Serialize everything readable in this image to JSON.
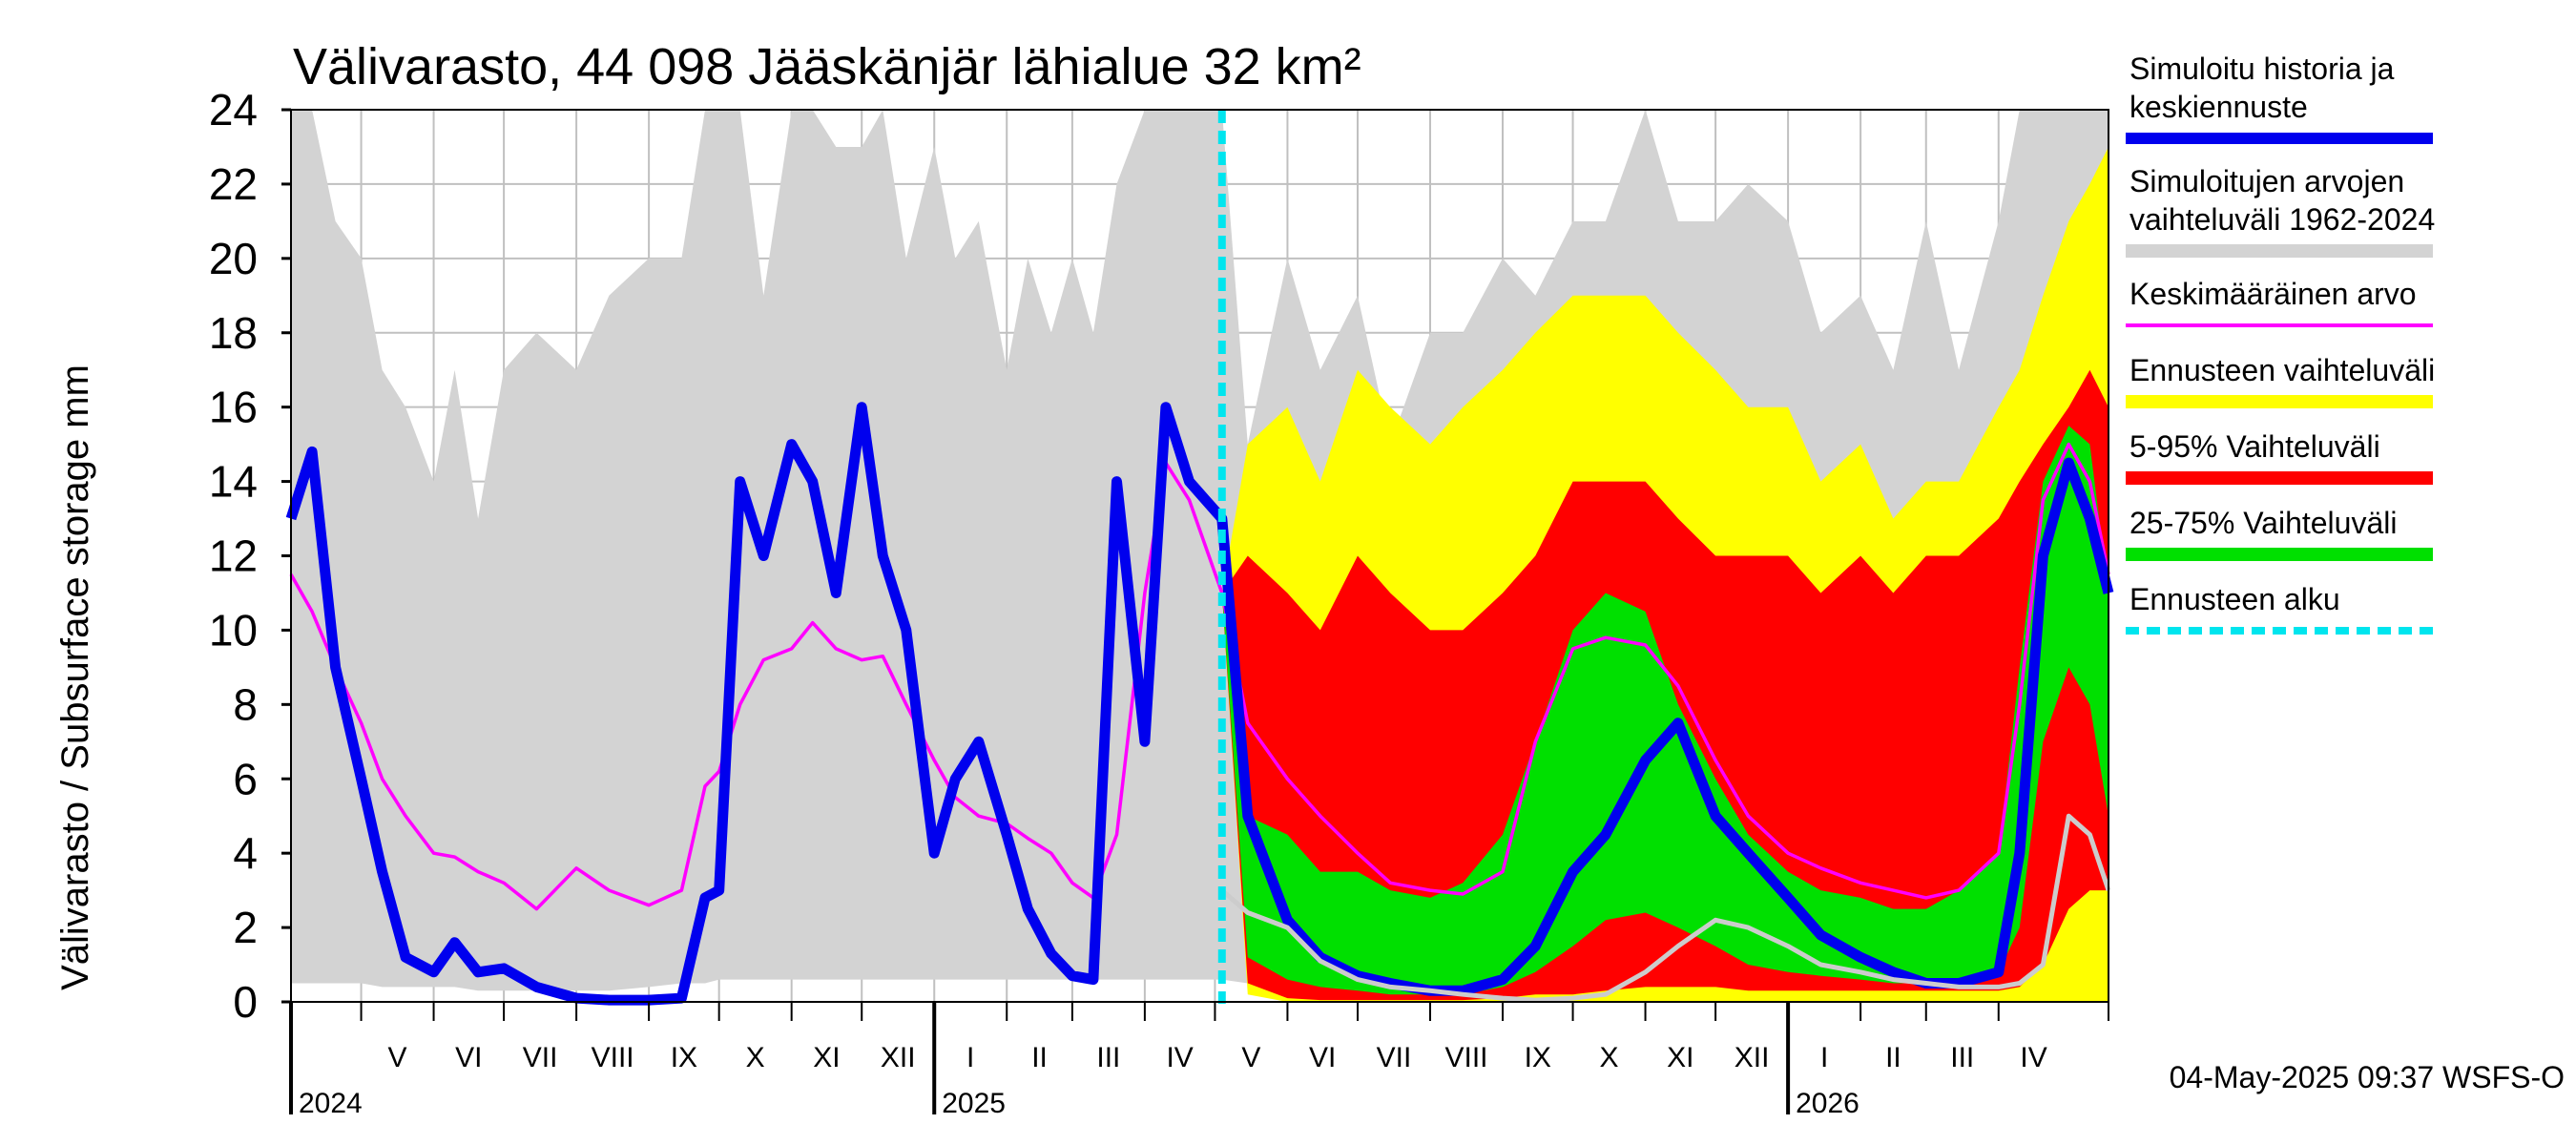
{
  "chart_data": {
    "type": "area",
    "title": "Välivarasto, 44 098 Jääskänjär lähialue 32 km²",
    "ylabel": "Välivarasto / Subsurface storage  mm",
    "ylim": [
      0,
      24
    ],
    "yticks": [
      "0",
      "2",
      "4",
      "6",
      "8",
      "10",
      "12",
      "14",
      "16",
      "18",
      "20",
      "22",
      "24"
    ],
    "x_start": "2024-04-01",
    "x_end": "2026-05-18",
    "forecast_start": "2025-05-04",
    "months": [
      {
        "label": "V",
        "start": "2024-05-01",
        "end": "2024-06-01"
      },
      {
        "label": "VI",
        "start": "2024-06-01",
        "end": "2024-07-01"
      },
      {
        "label": "VII",
        "start": "2024-07-01",
        "end": "2024-08-01"
      },
      {
        "label": "VIII",
        "start": "2024-08-01",
        "end": "2024-09-01"
      },
      {
        "label": "IX",
        "start": "2024-09-01",
        "end": "2024-10-01"
      },
      {
        "label": "X",
        "start": "2024-10-01",
        "end": "2024-11-01"
      },
      {
        "label": "XI",
        "start": "2024-11-01",
        "end": "2024-12-01"
      },
      {
        "label": "XII",
        "start": "2024-12-01",
        "end": "2025-01-01"
      },
      {
        "label": "I",
        "start": "2025-01-01",
        "end": "2025-02-01"
      },
      {
        "label": "II",
        "start": "2025-02-01",
        "end": "2025-03-01"
      },
      {
        "label": "III",
        "start": "2025-03-01",
        "end": "2025-04-01"
      },
      {
        "label": "IV",
        "start": "2025-04-01",
        "end": "2025-05-01"
      },
      {
        "label": "V",
        "start": "2025-05-01",
        "end": "2025-06-01"
      },
      {
        "label": "VI",
        "start": "2025-06-01",
        "end": "2025-07-01"
      },
      {
        "label": "VII",
        "start": "2025-07-01",
        "end": "2025-08-01"
      },
      {
        "label": "VIII",
        "start": "2025-08-01",
        "end": "2025-09-01"
      },
      {
        "label": "IX",
        "start": "2025-09-01",
        "end": "2025-10-01"
      },
      {
        "label": "X",
        "start": "2025-10-01",
        "end": "2025-11-01"
      },
      {
        "label": "XI",
        "start": "2025-11-01",
        "end": "2025-12-01"
      },
      {
        "label": "XII",
        "start": "2025-12-01",
        "end": "2026-01-01"
      },
      {
        "label": "I",
        "start": "2026-01-01",
        "end": "2026-02-01"
      },
      {
        "label": "II",
        "start": "2026-02-01",
        "end": "2026-03-01"
      },
      {
        "label": "III",
        "start": "2026-03-01",
        "end": "2026-04-01"
      },
      {
        "label": "IV",
        "start": "2026-04-01",
        "end": "2026-05-01"
      }
    ],
    "years": [
      {
        "label": "2024",
        "date": "2024-04-01"
      },
      {
        "label": "2025",
        "date": "2025-01-01"
      },
      {
        "label": "2026",
        "date": "2026-01-01"
      }
    ],
    "x": [
      "2024-04-01",
      "2024-04-10",
      "2024-04-20",
      "2024-05-01",
      "2024-05-10",
      "2024-05-20",
      "2024-06-01",
      "2024-06-10",
      "2024-06-20",
      "2024-07-01",
      "2024-07-15",
      "2024-08-01",
      "2024-08-15",
      "2024-09-01",
      "2024-09-15",
      "2024-09-25",
      "2024-10-01",
      "2024-10-10",
      "2024-10-20",
      "2024-11-01",
      "2024-11-10",
      "2024-11-20",
      "2024-12-01",
      "2024-12-10",
      "2024-12-20",
      "2025-01-01",
      "2025-01-10",
      "2025-01-20",
      "2025-02-01",
      "2025-02-10",
      "2025-02-20",
      "2025-03-01",
      "2025-03-10",
      "2025-03-20",
      "2025-04-01",
      "2025-04-10",
      "2025-04-20",
      "2025-05-04",
      "2025-05-15",
      "2025-06-01",
      "2025-06-15",
      "2025-07-01",
      "2025-07-15",
      "2025-08-01",
      "2025-08-15",
      "2025-09-01",
      "2025-09-15",
      "2025-10-01",
      "2025-10-15",
      "2025-11-01",
      "2025-11-15",
      "2025-12-01",
      "2025-12-15",
      "2026-01-01",
      "2026-01-15",
      "2026-02-01",
      "2026-02-15",
      "2026-03-01",
      "2026-03-15",
      "2026-04-01",
      "2026-04-10",
      "2026-04-20",
      "2026-05-01",
      "2026-05-10",
      "2026-05-18"
    ],
    "series": [
      {
        "name": "Simuloitujen arvojen vaihteluväli 1962-2024",
        "role": "band",
        "color": "#d3d3d3",
        "low": [
          0.5,
          0.5,
          0.5,
          0.5,
          0.4,
          0.4,
          0.4,
          0.4,
          0.3,
          0.3,
          0.3,
          0.3,
          0.3,
          0.4,
          0.5,
          0.5,
          0.6,
          0.6,
          0.6,
          0.6,
          0.6,
          0.6,
          0.6,
          0.6,
          0.6,
          0.6,
          0.6,
          0.6,
          0.6,
          0.6,
          0.6,
          0.6,
          0.6,
          0.6,
          0.6,
          0.6,
          0.6,
          0.6,
          0.5,
          0.4,
          0.3,
          0.3,
          0.3,
          0.3,
          0.3,
          0.4,
          0.5,
          0.6,
          0.6,
          0.6,
          0.6,
          0.6,
          0.6,
          0.6,
          0.6,
          0.6,
          0.6,
          0.6,
          0.6,
          0.6,
          0.6,
          0.6,
          0.6,
          0.6,
          0.6
        ],
        "high": [
          24,
          24,
          21,
          20,
          17,
          16,
          14,
          17,
          13,
          17,
          18,
          17,
          19,
          20,
          20,
          24,
          24,
          24,
          19,
          24,
          24,
          23,
          23,
          24,
          20,
          23,
          20,
          21,
          17,
          20,
          18,
          20,
          18,
          22,
          24,
          24,
          24,
          24,
          15,
          20,
          17,
          19,
          15,
          18,
          18,
          20,
          19,
          21,
          21,
          24,
          21,
          21,
          22,
          21,
          18,
          19,
          17,
          21,
          17,
          21,
          24,
          24,
          24,
          24,
          24
        ]
      },
      {
        "name": "Ennusteen vaihteluväli",
        "role": "band",
        "color": "#ffff00",
        "low": [
          null,
          null,
          null,
          null,
          null,
          null,
          null,
          null,
          null,
          null,
          null,
          null,
          null,
          null,
          null,
          null,
          null,
          null,
          null,
          null,
          null,
          null,
          null,
          null,
          null,
          null,
          null,
          null,
          null,
          null,
          null,
          null,
          null,
          null,
          null,
          null,
          null,
          11.0,
          0.2,
          0.0,
          0.0,
          0.0,
          0.0,
          0.0,
          0.0,
          0.0,
          0.0,
          0.0,
          0.0,
          0.0,
          0.0,
          0.0,
          0.0,
          0.0,
          0.0,
          0.0,
          0.0,
          0.0,
          0.0,
          0.0,
          0.0,
          0.0,
          0.0,
          0.0,
          0.0
        ],
        "high": [
          null,
          null,
          null,
          null,
          null,
          null,
          null,
          null,
          null,
          null,
          null,
          null,
          null,
          null,
          null,
          null,
          null,
          null,
          null,
          null,
          null,
          null,
          null,
          null,
          null,
          null,
          null,
          null,
          null,
          null,
          null,
          null,
          null,
          null,
          null,
          null,
          null,
          11.0,
          15,
          16,
          14,
          17,
          16,
          15,
          16,
          17,
          18,
          19,
          19,
          19,
          18,
          17,
          16,
          16,
          14,
          15,
          13,
          14,
          14,
          16,
          17,
          19,
          21,
          22,
          23
        ]
      },
      {
        "name": "5-95% Vaihteluväli",
        "role": "band",
        "color": "#ff0000",
        "low": [
          null,
          null,
          null,
          null,
          null,
          null,
          null,
          null,
          null,
          null,
          null,
          null,
          null,
          null,
          null,
          null,
          null,
          null,
          null,
          null,
          null,
          null,
          null,
          null,
          null,
          null,
          null,
          null,
          null,
          null,
          null,
          null,
          null,
          null,
          null,
          null,
          null,
          11.0,
          0.5,
          0.1,
          0.05,
          0.05,
          0.05,
          0.05,
          0.05,
          0.1,
          0.2,
          0.2,
          0.3,
          0.4,
          0.4,
          0.4,
          0.3,
          0.3,
          0.3,
          0.3,
          0.3,
          0.3,
          0.3,
          0.3,
          0.4,
          1.0,
          2.5,
          3.0,
          3.0
        ],
        "high": [
          null,
          null,
          null,
          null,
          null,
          null,
          null,
          null,
          null,
          null,
          null,
          null,
          null,
          null,
          null,
          null,
          null,
          null,
          null,
          null,
          null,
          null,
          null,
          null,
          null,
          null,
          null,
          null,
          null,
          null,
          null,
          null,
          null,
          null,
          null,
          null,
          null,
          11.0,
          12,
          11,
          10,
          12,
          11,
          10,
          10,
          11,
          12,
          14,
          14,
          14,
          13,
          12,
          12,
          12,
          11,
          12,
          11,
          12,
          12,
          13,
          14,
          15,
          16,
          17,
          16
        ]
      },
      {
        "name": "25-75% Vaihteluväli",
        "role": "band",
        "color": "#00e000",
        "low": [
          null,
          null,
          null,
          null,
          null,
          null,
          null,
          null,
          null,
          null,
          null,
          null,
          null,
          null,
          null,
          null,
          null,
          null,
          null,
          null,
          null,
          null,
          null,
          null,
          null,
          null,
          null,
          null,
          null,
          null,
          null,
          null,
          null,
          null,
          null,
          null,
          null,
          11.0,
          1.2,
          0.6,
          0.4,
          0.3,
          0.2,
          0.2,
          0.2,
          0.4,
          0.8,
          1.5,
          2.2,
          2.4,
          2.0,
          1.5,
          1.0,
          0.8,
          0.7,
          0.6,
          0.5,
          0.5,
          0.5,
          0.8,
          2.0,
          7.0,
          9.0,
          8.0,
          5.0
        ],
        "high": [
          null,
          null,
          null,
          null,
          null,
          null,
          null,
          null,
          null,
          null,
          null,
          null,
          null,
          null,
          null,
          null,
          null,
          null,
          null,
          null,
          null,
          null,
          null,
          null,
          null,
          null,
          null,
          null,
          null,
          null,
          null,
          null,
          null,
          null,
          null,
          null,
          null,
          11.0,
          5.0,
          4.5,
          3.5,
          3.5,
          3.0,
          2.8,
          3.2,
          4.5,
          7.0,
          10.0,
          11.0,
          10.5,
          8.0,
          6.0,
          4.5,
          3.5,
          3.0,
          2.8,
          2.5,
          2.5,
          3.0,
          4.0,
          9.0,
          14,
          15.5,
          15,
          11
        ]
      },
      {
        "name": "Keskimääräinen arvo",
        "role": "line",
        "color": "#ff00ff",
        "values": [
          11.5,
          10.5,
          9,
          7.5,
          6,
          5,
          4,
          3.9,
          3.5,
          3.2,
          2.5,
          3.6,
          3,
          2.6,
          3.0,
          5.8,
          6.2,
          8.0,
          9.2,
          9.5,
          10.2,
          9.5,
          9.2,
          9.3,
          8.0,
          6.5,
          5.5,
          5.0,
          4.8,
          4.4,
          4.0,
          3.2,
          2.8,
          4.5,
          11.0,
          14.5,
          13.5,
          11.0,
          7.5,
          6,
          5,
          4,
          3.2,
          3.0,
          2.9,
          3.5,
          7.0,
          9.5,
          9.8,
          9.6,
          8.5,
          6.5,
          5.0,
          4.0,
          3.6,
          3.2,
          3.0,
          2.8,
          3.0,
          4.0,
          8.0,
          13.5,
          15.0,
          14.0,
          11.5
        ]
      },
      {
        "name": "Simuloitu historia ja keskiennuste",
        "role": "line",
        "color": "#0000ee",
        "values": [
          13,
          14.8,
          9,
          6,
          3.5,
          1.2,
          0.8,
          1.6,
          0.8,
          0.9,
          0.4,
          0.1,
          0.05,
          0.05,
          0.1,
          2.8,
          3.0,
          14,
          12,
          15,
          14,
          11,
          16,
          12,
          10,
          4,
          6,
          7,
          4.5,
          2.5,
          1.3,
          0.7,
          0.6,
          14,
          7,
          16,
          14,
          13,
          5.0,
          2.2,
          1.2,
          0.7,
          0.5,
          0.3,
          0.3,
          0.6,
          1.5,
          3.5,
          4.5,
          6.5,
          7.5,
          5.0,
          4.0,
          2.8,
          1.8,
          1.2,
          0.8,
          0.5,
          0.5,
          0.8,
          4,
          12,
          14.5,
          13,
          11
        ]
      },
      {
        "name": "Minimum",
        "role": "line",
        "color": "#cccccc",
        "values": [
          null,
          null,
          null,
          null,
          null,
          null,
          null,
          null,
          null,
          null,
          null,
          null,
          null,
          null,
          null,
          null,
          null,
          null,
          null,
          null,
          null,
          null,
          null,
          null,
          null,
          null,
          null,
          null,
          null,
          null,
          null,
          null,
          null,
          null,
          null,
          null,
          null,
          3.0,
          2.4,
          2.0,
          1.1,
          0.6,
          0.4,
          0.3,
          0.2,
          0.1,
          0.05,
          0.1,
          0.2,
          0.8,
          1.5,
          2.2,
          2.0,
          1.5,
          1.0,
          0.8,
          0.6,
          0.5,
          0.4,
          0.4,
          0.5,
          1.0,
          5.0,
          4.5,
          3.0
        ]
      }
    ],
    "legend": [
      {
        "label_lines": [
          "Simuloitu historia ja",
          "keskiennuste"
        ],
        "color": "#0000ee",
        "style": "line"
      },
      {
        "label_lines": [
          "Simuloitujen arvojen",
          "vaihteluväli 1962-2024"
        ],
        "color": "#d3d3d3",
        "style": "band"
      },
      {
        "label_lines": [
          "Keskimääräinen arvo"
        ],
        "color": "#ff00ff",
        "style": "thin"
      },
      {
        "label_lines": [
          "Ennusteen vaihteluväli"
        ],
        "color": "#ffff00",
        "style": "band"
      },
      {
        "label_lines": [
          "5-95% Vaihteluväli"
        ],
        "color": "#ff0000",
        "style": "band"
      },
      {
        "label_lines": [
          "25-75% Vaihteluväli"
        ],
        "color": "#00e000",
        "style": "band"
      },
      {
        "label_lines": [
          "Ennusteen alku"
        ],
        "color": "#00e5ee",
        "style": "dashed"
      }
    ],
    "grid": true,
    "legend_position": "right",
    "footer": "04-May-2025 09:37 WSFS-O"
  }
}
